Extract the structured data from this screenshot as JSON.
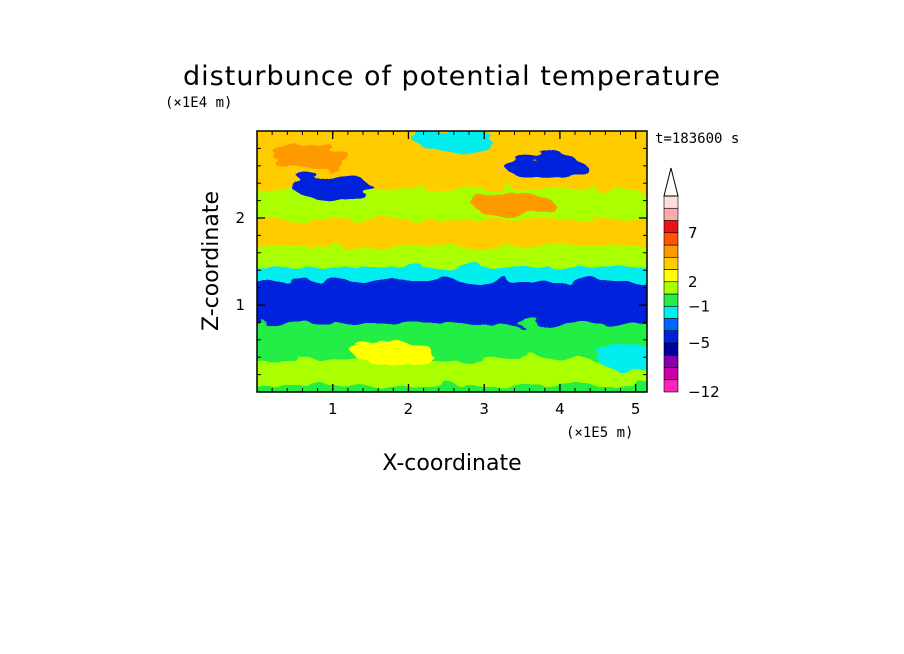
{
  "chart_data": {
    "type": "heatmap",
    "title": "disturbunce of potential temperature",
    "xlabel": "X-coordinate",
    "ylabel": "Z-coordinate",
    "x_scale_label": "(×1E5 m)",
    "y_scale_label": "(×1E4 m)",
    "time_label": "t=183600 s",
    "xlim": [
      0,
      5.15
    ],
    "ylim": [
      0,
      3.0
    ],
    "x_ticks": [
      "1",
      "2",
      "3",
      "4",
      "5"
    ],
    "y_ticks": [
      "1",
      "2"
    ],
    "colorbar": {
      "levels": [
        -12,
        -5,
        -1,
        2,
        7
      ],
      "labels": [
        "−12",
        "−5",
        "−1",
        "2",
        "7"
      ],
      "colors": [
        "#ff22bb",
        "#cc00aa",
        "#8800aa",
        "#000099",
        "#0022dd",
        "#0066ff",
        "#00eeee",
        "#22ee44",
        "#aaff00",
        "#ffff00",
        "#ffcc00",
        "#ff9900",
        "#ff5500",
        "#ee1111",
        "#ffaaaa",
        "#ffdddd"
      ],
      "extend": "max"
    },
    "bands": [
      {
        "z": [
          0.0,
          0.15
        ],
        "category": "light-green",
        "color": "#22ee44"
      },
      {
        "z": [
          0.15,
          0.45
        ],
        "category": "yellow-green",
        "color": "#aaff00"
      },
      {
        "z": [
          0.45,
          0.85
        ],
        "category": "green",
        "color": "#22ee44"
      },
      {
        "z": [
          0.85,
          1.35
        ],
        "category": "blue",
        "color": "#0022dd"
      },
      {
        "z": [
          1.35,
          1.5
        ],
        "category": "cyan",
        "color": "#00eeee"
      },
      {
        "z": [
          1.5,
          1.75
        ],
        "category": "yellow-green",
        "color": "#aaff00"
      },
      {
        "z": [
          1.75,
          2.05
        ],
        "category": "orange",
        "color": "#ffcc00"
      },
      {
        "z": [
          2.05,
          2.4
        ],
        "category": "yellow-green",
        "color": "#aaff00"
      },
      {
        "z": [
          2.4,
          3.0
        ],
        "category": "orange",
        "color": "#ffcc00"
      }
    ],
    "blobs": [
      {
        "x": 0.7,
        "z": 2.7,
        "category": "dark-orange",
        "color": "#ff9900"
      },
      {
        "x": 3.4,
        "z": 2.15,
        "category": "dark-orange",
        "color": "#ff9900"
      },
      {
        "x": 3.8,
        "z": 2.6,
        "category": "blue",
        "color": "#0022dd"
      },
      {
        "x": 1.0,
        "z": 2.35,
        "category": "blue",
        "color": "#0022dd"
      },
      {
        "x": 2.6,
        "z": 2.9,
        "category": "cyan",
        "color": "#00eeee"
      },
      {
        "x": 1.8,
        "z": 0.45,
        "category": "yellow",
        "color": "#ffff00"
      },
      {
        "x": 5.0,
        "z": 0.4,
        "category": "cyan",
        "color": "#00eeee"
      }
    ]
  }
}
